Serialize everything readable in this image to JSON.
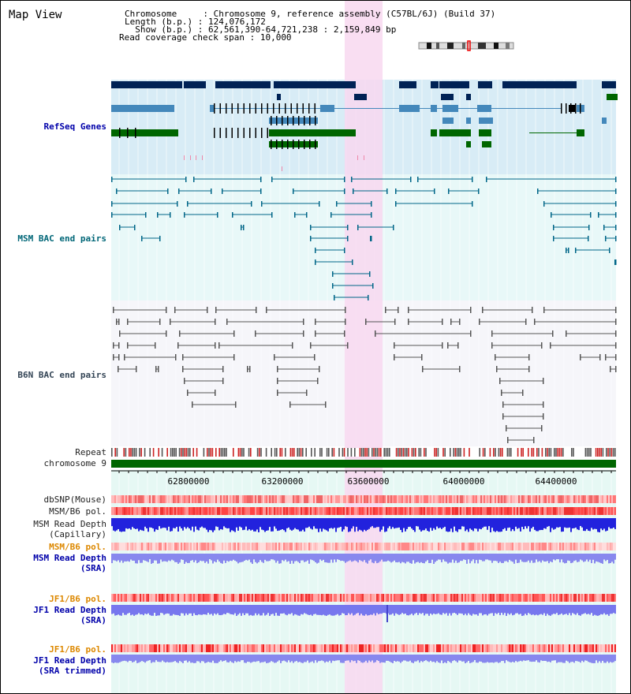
{
  "page": {
    "title": "Map View"
  },
  "header": {
    "chromosome_label": "Chromosome     ",
    "chromosome_value": ": Chromosome 9, reference assembly (C57BL/6J) (Build 37)",
    "length_label": "Length (b.p.) ",
    "length_value": ": 124,076,172",
    "show_label": "  Show (b.p.) ",
    "show_value": ": 62,561,390-64,721,238 : 2,159,849 bp",
    "coverage_label": "Read coverage check span",
    "coverage_value": ": 10,000"
  },
  "tracks": {
    "refseq": "RefSeq Genes",
    "msm_bac": "MSM BAC end pairs",
    "b6n_bac": "B6N BAC end pairs",
    "repeat": "Repeat",
    "chromosome": "chromosome 9",
    "dbsnp": "dbSNP(Mouse)",
    "msm_b6_pol_1": "MSM/B6 pol.",
    "msm_read_depth_cap_1": "MSM Read Depth",
    "msm_read_depth_cap_2": "(Capillary)",
    "msm_b6_pol_2": "MSM/B6 pol.",
    "msm_read_depth_sra_1": "MSM Read Depth",
    "msm_read_depth_sra_2": "(SRA)",
    "jf1_b6_pol_1": "JF1/B6 pol.",
    "jf1_read_depth_sra_1": "JF1 Read Depth",
    "jf1_read_depth_sra_2": "(SRA)",
    "jf1_b6_pol_2": "JF1/B6 pol.",
    "jf1_read_depth_trim_1": "JF1 Read Depth",
    "jf1_read_depth_trim_2": "(SRA trimmed)"
  },
  "axis": {
    "ticks": [
      "62800000",
      "63200000",
      "63600000",
      "64000000",
      "64400000"
    ]
  },
  "colors": {
    "refseq_bg": "#d8ecf6",
    "bac_bg": "#e8f8f8",
    "highlight": "#f8d8f0",
    "gene_navy": "#002255",
    "gene_steel": "#4488bb",
    "gene_green": "#006600",
    "msm_line": "#006688",
    "b6n_line": "#555555",
    "chrom_bar": "#006600"
  }
}
